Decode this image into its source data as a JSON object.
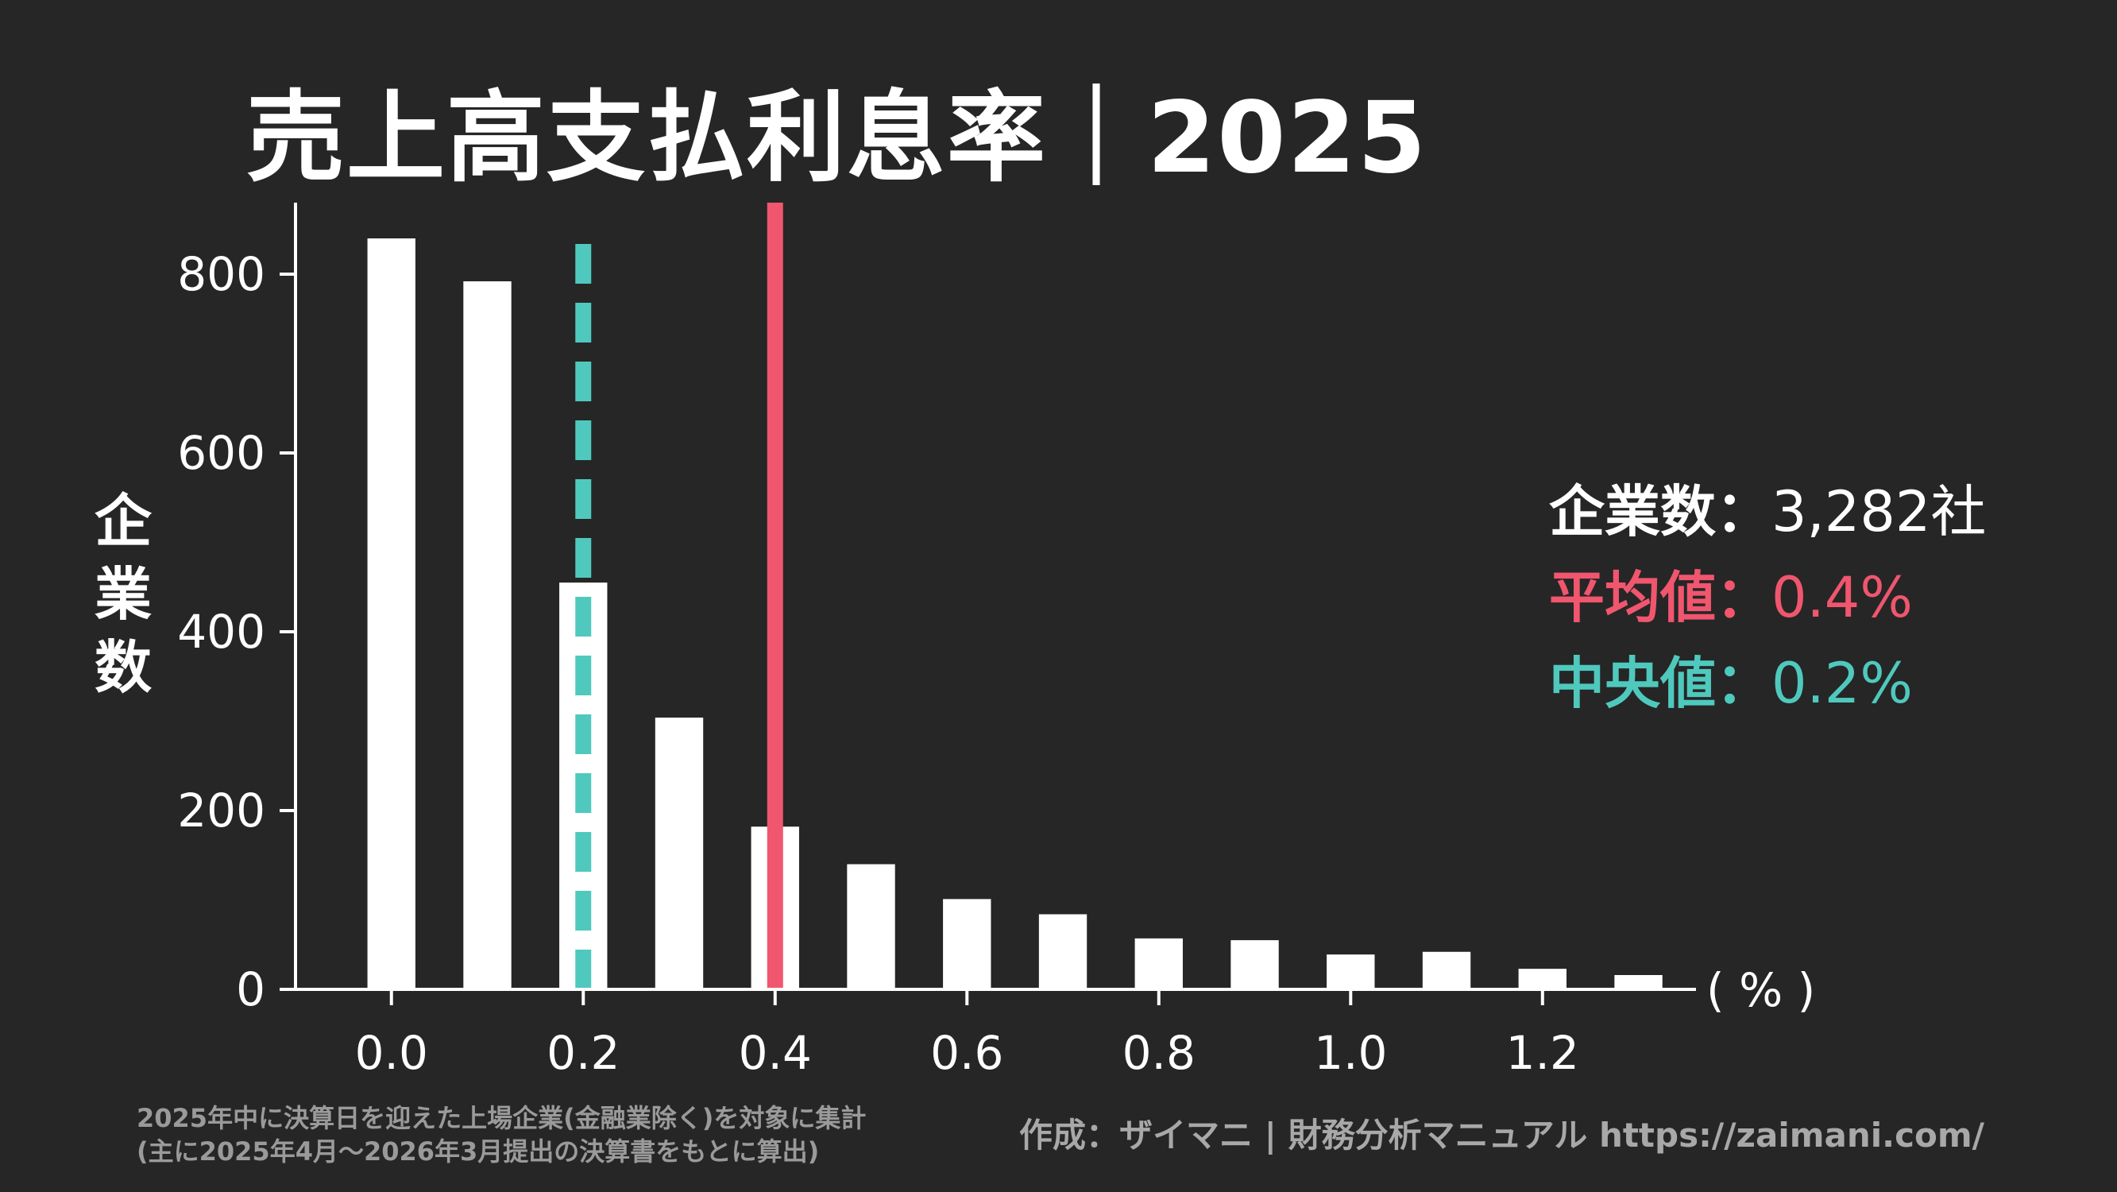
{
  "chart_data": {
    "type": "bar",
    "title": "売上高支払利息率｜2025",
    "ylabel": "企業数",
    "xlabel_unit": "( % )",
    "x": [
      0.0,
      0.1,
      0.2,
      0.3,
      0.4,
      0.5,
      0.6,
      0.7,
      0.8,
      0.9,
      1.0,
      1.1,
      1.2,
      1.3
    ],
    "values": [
      840,
      792,
      455,
      304,
      182,
      140,
      101,
      84,
      57,
      55,
      39,
      42,
      23,
      16
    ],
    "xlim": [
      -0.1,
      1.36
    ],
    "ylim": [
      0,
      880
    ],
    "xticks": [
      "0.0",
      "0.2",
      "0.4",
      "0.6",
      "0.8",
      "1.0",
      "1.2"
    ],
    "yticks": [
      "0",
      "200",
      "400",
      "600",
      "800"
    ],
    "mean": 0.4,
    "median": 0.2,
    "grid": false
  },
  "stats": {
    "count_label": "企業数：",
    "count_value": "3,282社",
    "mean_label": "平均値：",
    "mean_value": "0.4%",
    "median_label": "中央値：",
    "median_value": "0.2%"
  },
  "footer": {
    "note_line1": "2025年中に決算日を迎えた上場企業(金融業除く)を対象に集計",
    "note_line2": "(主に2025年4月〜2026年3月提出の決算書をもとに算出)",
    "credit": "作成：ザイマニ | 財務分析マニュアル https://zaimani.com/"
  },
  "colors": {
    "background": "#262626",
    "bar": "#ffffff",
    "mean": "#f0566e",
    "median": "#4fc9bd",
    "axis": "#ffffff"
  }
}
